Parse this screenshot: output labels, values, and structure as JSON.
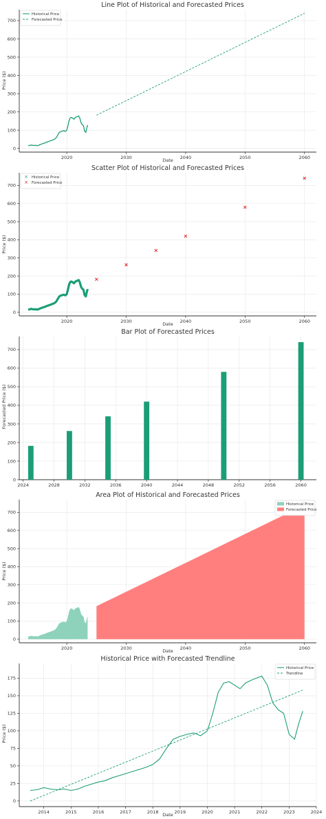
{
  "colors": {
    "historical": "#1b9e77",
    "historical_area": "#8ed2bb",
    "forecast_line": "#1b9e77",
    "forecast_marker": "#e41a1c",
    "forecast_area": "#ff7f7f",
    "bar": "#1b9e77",
    "trendline": "#1b9e77"
  },
  "historical_series": {
    "x": [
      2013.5,
      2013.75,
      2014.0,
      2014.25,
      2014.5,
      2014.75,
      2015.0,
      2015.25,
      2015.5,
      2015.75,
      2016.0,
      2016.25,
      2016.5,
      2016.75,
      2017.0,
      2017.25,
      2017.5,
      2017.75,
      2018.0,
      2018.25,
      2018.5,
      2018.75,
      2019.0,
      2019.25,
      2019.5,
      2019.75,
      2020.0,
      2020.2,
      2020.4,
      2020.6,
      2020.8,
      2021.0,
      2021.2,
      2021.4,
      2021.6,
      2021.8,
      2022.0,
      2022.2,
      2022.4,
      2022.6,
      2022.8,
      2023.0,
      2023.2,
      2023.35,
      2023.5
    ],
    "y": [
      15,
      16,
      19,
      17,
      16,
      17,
      15,
      17,
      21,
      24,
      27,
      29,
      33,
      36,
      39,
      42,
      45,
      48,
      52,
      60,
      75,
      88,
      92,
      95,
      97,
      93,
      100,
      125,
      155,
      168,
      170,
      165,
      160,
      168,
      172,
      175,
      178,
      165,
      140,
      130,
      125,
      95,
      88,
      110,
      128
    ]
  },
  "charts": [
    {
      "type": "line",
      "title": "Line Plot of Historical and Forecasted Prices",
      "xlabel": "Date",
      "ylabel": "Price ($)",
      "xlim": [
        2012.0,
        2062.0
      ],
      "ylim": [
        -20,
        760
      ],
      "xticks": [
        2020,
        2030,
        2040,
        2050,
        2060
      ],
      "yticks": [
        0,
        100,
        200,
        300,
        400,
        500,
        600,
        700
      ],
      "legend": {
        "position": "top-left",
        "entries": [
          "Historical Price",
          "Forecasted Price"
        ]
      },
      "series": [
        {
          "name": "Historical Price",
          "source": "historical"
        },
        {
          "name": "Forecasted Price",
          "x": [
            2025,
            2060
          ],
          "y": [
            182,
            740
          ]
        }
      ]
    },
    {
      "type": "scatter",
      "title": "Scatter Plot of Historical and Forecasted Prices",
      "xlabel": "Date",
      "ylabel": "Price ($)",
      "xlim": [
        2012.0,
        2062.0
      ],
      "ylim": [
        -20,
        770
      ],
      "xticks": [
        2020,
        2030,
        2040,
        2050,
        2060
      ],
      "yticks": [
        0,
        100,
        200,
        300,
        400,
        500,
        600,
        700
      ],
      "legend": {
        "position": "top-left",
        "entries": [
          "Historical Price",
          "Forecasted Price"
        ]
      },
      "series": [
        {
          "name": "Historical Price",
          "source": "historical"
        },
        {
          "name": "Forecasted Price",
          "x": [
            2025,
            2030,
            2035,
            2040,
            2050,
            2060
          ],
          "y": [
            182,
            262,
            341,
            420,
            580,
            740
          ]
        }
      ]
    },
    {
      "type": "bar",
      "title": "Bar Plot of Forecasted Prices",
      "xlabel": "",
      "ylabel": "Forecasted Price ($)",
      "xlim": [
        2023.5,
        2062.0
      ],
      "ylim": [
        0,
        770
      ],
      "xticks": [
        2024,
        2028,
        2032,
        2036,
        2040,
        2044,
        2048,
        2052,
        2056,
        2060
      ],
      "yticks": [
        0,
        100,
        200,
        300,
        400,
        500,
        600,
        700
      ],
      "categories": [
        2025,
        2030,
        2035,
        2040,
        2050,
        2060
      ],
      "values": [
        182,
        262,
        341,
        420,
        580,
        740
      ]
    },
    {
      "type": "area",
      "title": "Area Plot of Historical and Forecasted Prices",
      "xlabel": "Date",
      "ylabel": "Price ($)",
      "xlim": [
        2012.0,
        2062.0
      ],
      "ylim": [
        -20,
        770
      ],
      "xticks": [
        2020,
        2030,
        2040,
        2050,
        2060
      ],
      "yticks": [
        0,
        100,
        200,
        300,
        400,
        500,
        600,
        700
      ],
      "legend": {
        "position": "top-right",
        "entries": [
          "Historical Price",
          "Forecasted Price"
        ]
      },
      "series": [
        {
          "name": "Historical Price",
          "source": "historical"
        },
        {
          "name": "Forecasted Price",
          "x": [
            2025,
            2060
          ],
          "y": [
            182,
            740
          ]
        }
      ]
    },
    {
      "type": "line",
      "title": "Historical Price with Forecasted Trendline",
      "xlabel": "Date",
      "ylabel": "Price ($)",
      "xlim": [
        2013.1,
        2024.0
      ],
      "ylim": [
        -8,
        196
      ],
      "xticks": [
        2014,
        2015,
        2016,
        2017,
        2018,
        2019,
        2020,
        2021,
        2022,
        2023,
        2024
      ],
      "yticks": [
        0,
        25,
        50,
        75,
        100,
        125,
        150,
        175
      ],
      "legend": {
        "position": "top-right",
        "entries": [
          "Historical Price",
          "Trendline"
        ]
      },
      "series": [
        {
          "name": "Historical Price",
          "source": "historical"
        },
        {
          "name": "Trendline",
          "x": [
            2013.5,
            2023.5
          ],
          "y": [
            0,
            158
          ]
        }
      ]
    }
  ]
}
